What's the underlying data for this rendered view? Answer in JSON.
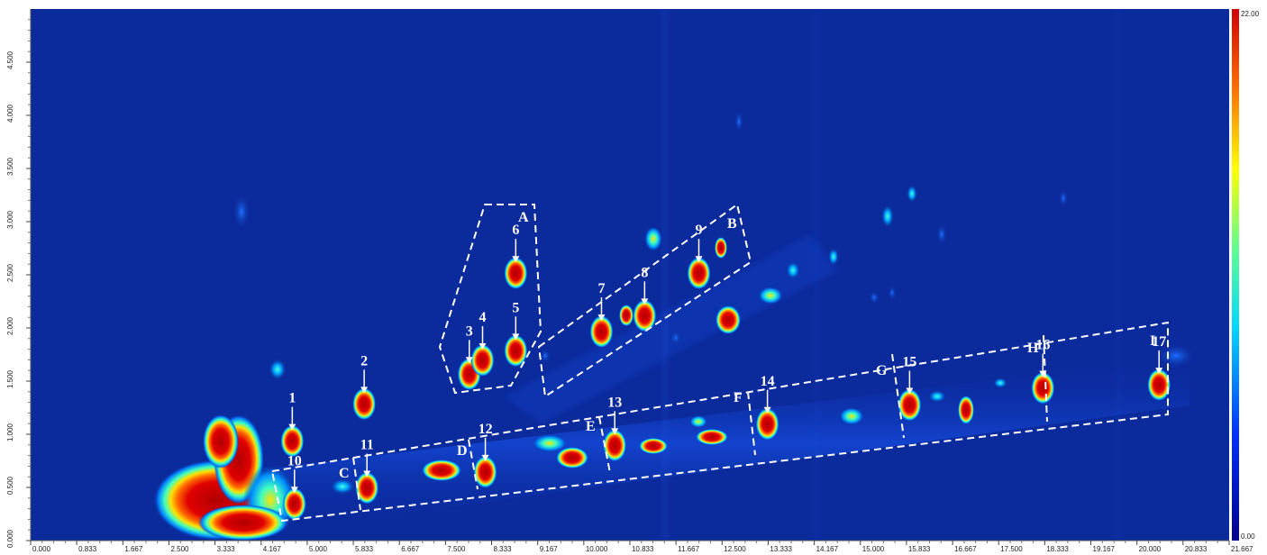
{
  "chart_data": {
    "type": "heatmap",
    "colormap": "jet",
    "background_color": "#0b2a9c",
    "x_ticks": [
      "0.000",
      "0.833",
      "1.667",
      "2.500",
      "3.333",
      "4.167",
      "5.000",
      "5.833",
      "6.667",
      "7.500",
      "8.333",
      "9.167",
      "10.000",
      "10.833",
      "11.667",
      "12.500",
      "13.333",
      "14.167",
      "15.000",
      "15.833",
      "16.667",
      "17.500",
      "18.333",
      "19.167",
      "20.000",
      "20.833",
      "21.667"
    ],
    "y_ticks": [
      "0.000",
      "0.500",
      "1.000",
      "1.500",
      "2.000",
      "2.500",
      "3.000",
      "3.500",
      "4.000",
      "4.500"
    ],
    "xlim": [
      0,
      21.667
    ],
    "ylim": [
      0,
      5.0
    ],
    "colorbar": {
      "max_label": "22.00",
      "min_label": "0.00",
      "range": [
        0,
        22
      ]
    },
    "peaks": [
      {
        "label": "1",
        "x": 4.73,
        "y": 1.02
      },
      {
        "label": "2",
        "x": 6.03,
        "y": 1.37
      },
      {
        "label": "3",
        "x": 7.93,
        "y": 1.65
      },
      {
        "label": "4",
        "x": 8.17,
        "y": 1.78
      },
      {
        "label": "5",
        "x": 8.77,
        "y": 1.87
      },
      {
        "label": "6",
        "x": 8.77,
        "y": 2.6
      },
      {
        "label": "7",
        "x": 10.32,
        "y": 2.05
      },
      {
        "label": "8",
        "x": 11.1,
        "y": 2.2
      },
      {
        "label": "9",
        "x": 12.08,
        "y": 2.6
      },
      {
        "label": "10",
        "x": 4.77,
        "y": 0.43
      },
      {
        "label": "11",
        "x": 6.08,
        "y": 0.58
      },
      {
        "label": "12",
        "x": 8.22,
        "y": 0.73
      },
      {
        "label": "13",
        "x": 10.56,
        "y": 0.98
      },
      {
        "label": "14",
        "x": 13.32,
        "y": 1.18
      },
      {
        "label": "15",
        "x": 15.89,
        "y": 1.36
      },
      {
        "label": "16",
        "x": 18.3,
        "y": 1.52
      },
      {
        "label": "17",
        "x": 20.4,
        "y": 1.55
      }
    ],
    "regions": [
      "A",
      "B",
      "C",
      "D",
      "E",
      "F",
      "G",
      "H",
      "I"
    ]
  }
}
